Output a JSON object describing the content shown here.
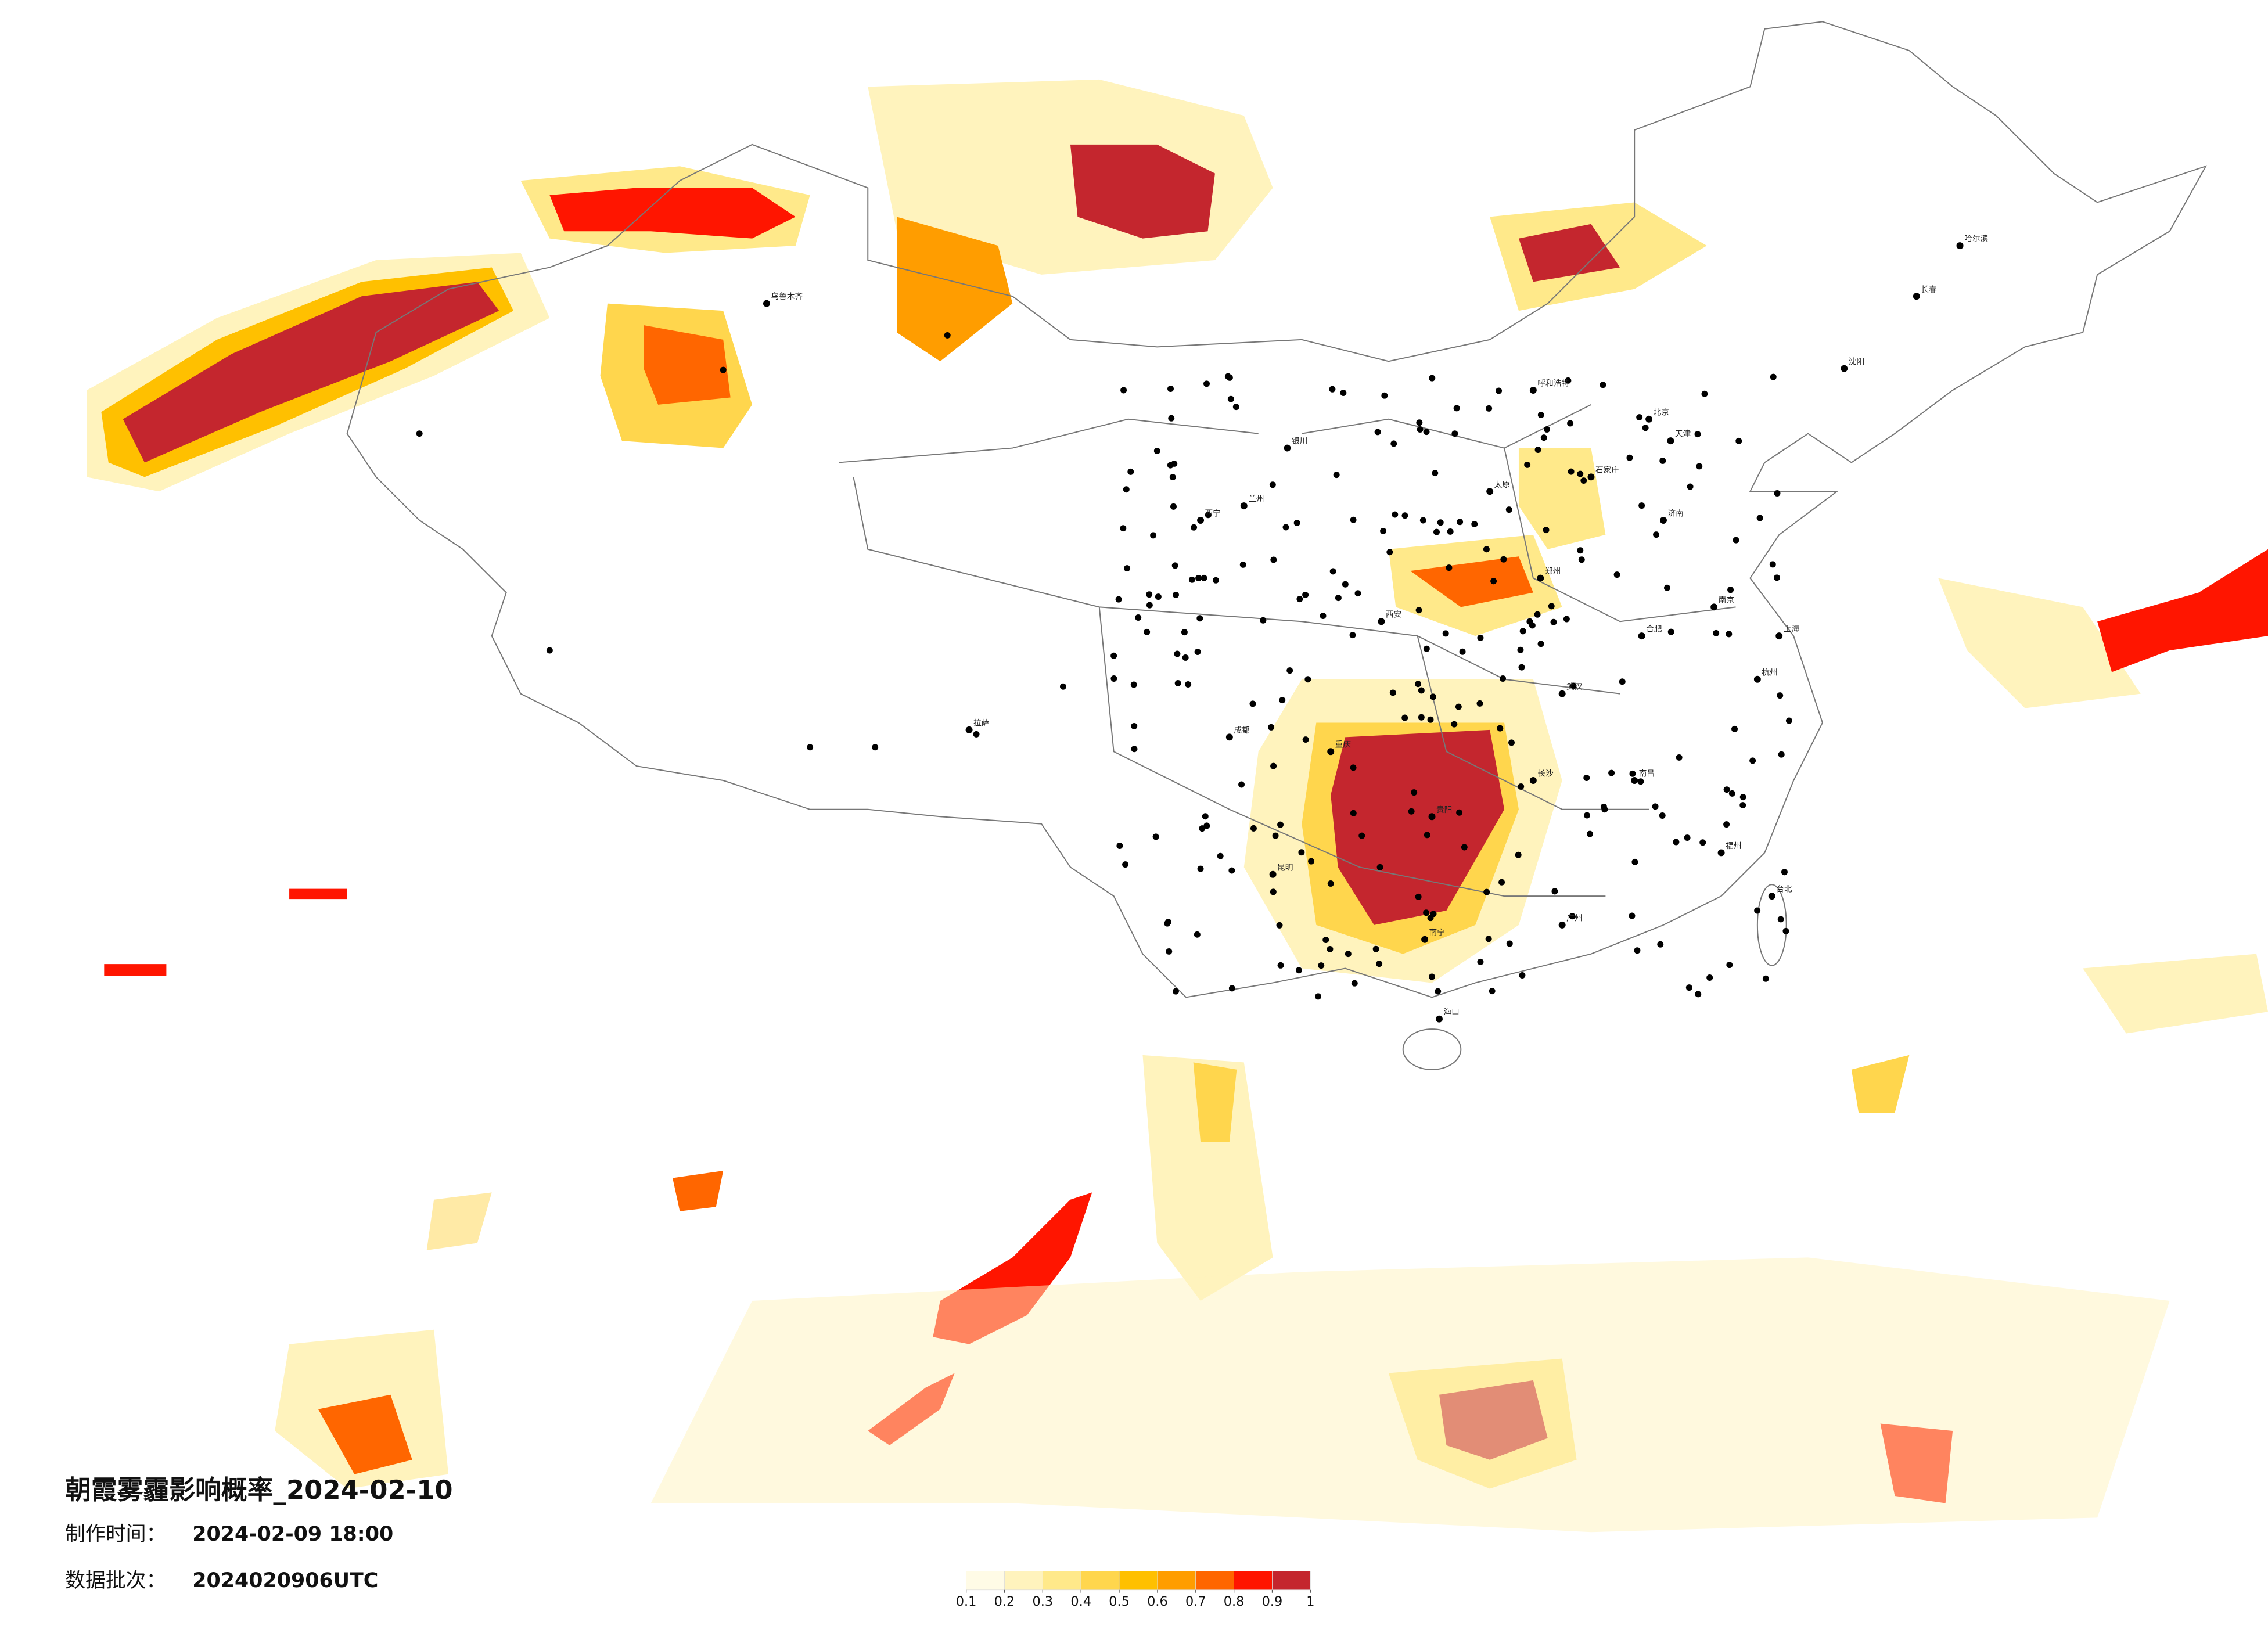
{
  "title": "朝霞雾霾影响概率_2024-02-10",
  "made_label": "制作时间：",
  "made_time": "2024-02-09 18:00",
  "batch_label": "数据批次：",
  "batch": "2024020906UTC",
  "legend": {
    "ticks": [
      0.1,
      0.2,
      0.3,
      0.4,
      0.5,
      0.6,
      0.7,
      0.8,
      0.9,
      1
    ],
    "colors": [
      "#fffbe6",
      "#fff3bd",
      "#ffe98a",
      "#ffd64d",
      "#ffc000",
      "#ff9d00",
      "#ff6600",
      "#ff1500",
      "#c4262e"
    ]
  },
  "cities": [
    "北京",
    "天津",
    "石家庄",
    "太原",
    "郑州",
    "武汉",
    "长沙",
    "南昌",
    "福州",
    "广州",
    "南宁",
    "贵阳",
    "昆明",
    "成都",
    "重庆",
    "西安",
    "兰州",
    "西宁",
    "银川",
    "拉萨",
    "乌鲁木齐",
    "呼和浩特",
    "哈尔滨",
    "长春",
    "沈阳",
    "济南",
    "南京",
    "上海",
    "杭州",
    "合肥",
    "海口",
    "台北"
  ]
}
